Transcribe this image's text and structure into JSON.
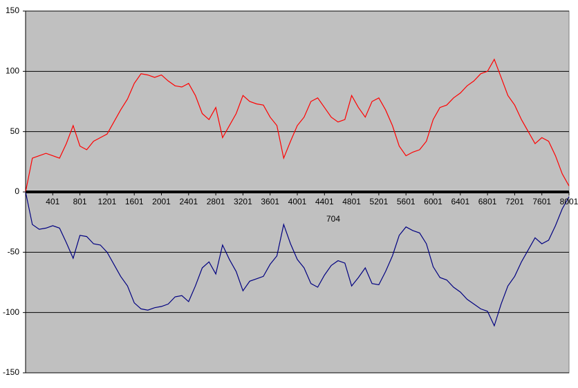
{
  "chart_data": {
    "type": "line",
    "x": [
      1,
      101,
      201,
      301,
      401,
      501,
      601,
      701,
      801,
      901,
      1001,
      1101,
      1201,
      1301,
      1401,
      1501,
      1601,
      1701,
      1801,
      1901,
      2001,
      2101,
      2201,
      2301,
      2401,
      2501,
      2601,
      2701,
      2801,
      2901,
      3001,
      3101,
      3201,
      3301,
      3401,
      3501,
      3601,
      3701,
      3801,
      3901,
      4001,
      4101,
      4201,
      4301,
      4401,
      4501,
      4601,
      4701,
      4801,
      4901,
      5001,
      5101,
      5201,
      5301,
      5401,
      5501,
      5601,
      5701,
      5801,
      5901,
      6001,
      6101,
      6201,
      6301,
      6401,
      6501,
      6601,
      6701,
      6801,
      6901,
      7001,
      7101,
      7201,
      7301,
      7401,
      7501,
      7601,
      7701,
      7801,
      7901,
      8001
    ],
    "series": [
      {
        "color": "#ff0000",
        "values": [
          0,
          28,
          30,
          32,
          30,
          28,
          40,
          55,
          38,
          35,
          42,
          45,
          48,
          58,
          68,
          77,
          90,
          98,
          97,
          95,
          97,
          92,
          88,
          87,
          90,
          80,
          65,
          60,
          70,
          45,
          55,
          65,
          80,
          75,
          73,
          72,
          62,
          55,
          28,
          42,
          55,
          62,
          75,
          78,
          70,
          62,
          58,
          60,
          80,
          70,
          62,
          75,
          78,
          68,
          55,
          38,
          30,
          33,
          35,
          42,
          60,
          70,
          72,
          78,
          82,
          88,
          92,
          98,
          100,
          110,
          95,
          80,
          72,
          60,
          50,
          40,
          45,
          42,
          30,
          15,
          5
        ]
      },
      {
        "color": "#000080",
        "values": [
          0,
          -27,
          -31,
          -30,
          -28,
          -30,
          -42,
          -55,
          -36,
          -37,
          -43,
          -44,
          -50,
          -60,
          -70,
          -78,
          -92,
          -97,
          -98,
          -96,
          -95,
          -93,
          -87,
          -86,
          -91,
          -78,
          -63,
          -58,
          -68,
          -44,
          -56,
          -66,
          -82,
          -74,
          -72,
          -70,
          -60,
          -53,
          -27,
          -43,
          -56,
          -63,
          -76,
          -79,
          -69,
          -61,
          -57,
          -59,
          -78,
          -71,
          -63,
          -76,
          -77,
          -66,
          -53,
          -36,
          -29,
          -32,
          -34,
          -43,
          -62,
          -71,
          -73,
          -79,
          -83,
          -89,
          -93,
          -97,
          -99,
          -111,
          -93,
          -78,
          -70,
          -58,
          -48,
          -38,
          -43,
          -40,
          -28,
          -14,
          -4
        ]
      }
    ],
    "annotation": "704",
    "xlim": [
      1,
      8001
    ],
    "xticks": [
      401,
      801,
      1201,
      1601,
      2001,
      2401,
      2801,
      3201,
      3601,
      4001,
      4401,
      4801,
      5201,
      5601,
      6001,
      6401,
      6801,
      7201,
      7601,
      8001
    ],
    "ylim": [
      -150,
      150
    ],
    "yticks": [
      -150,
      -100,
      -50,
      0,
      50,
      100,
      150
    ],
    "grid": true
  }
}
